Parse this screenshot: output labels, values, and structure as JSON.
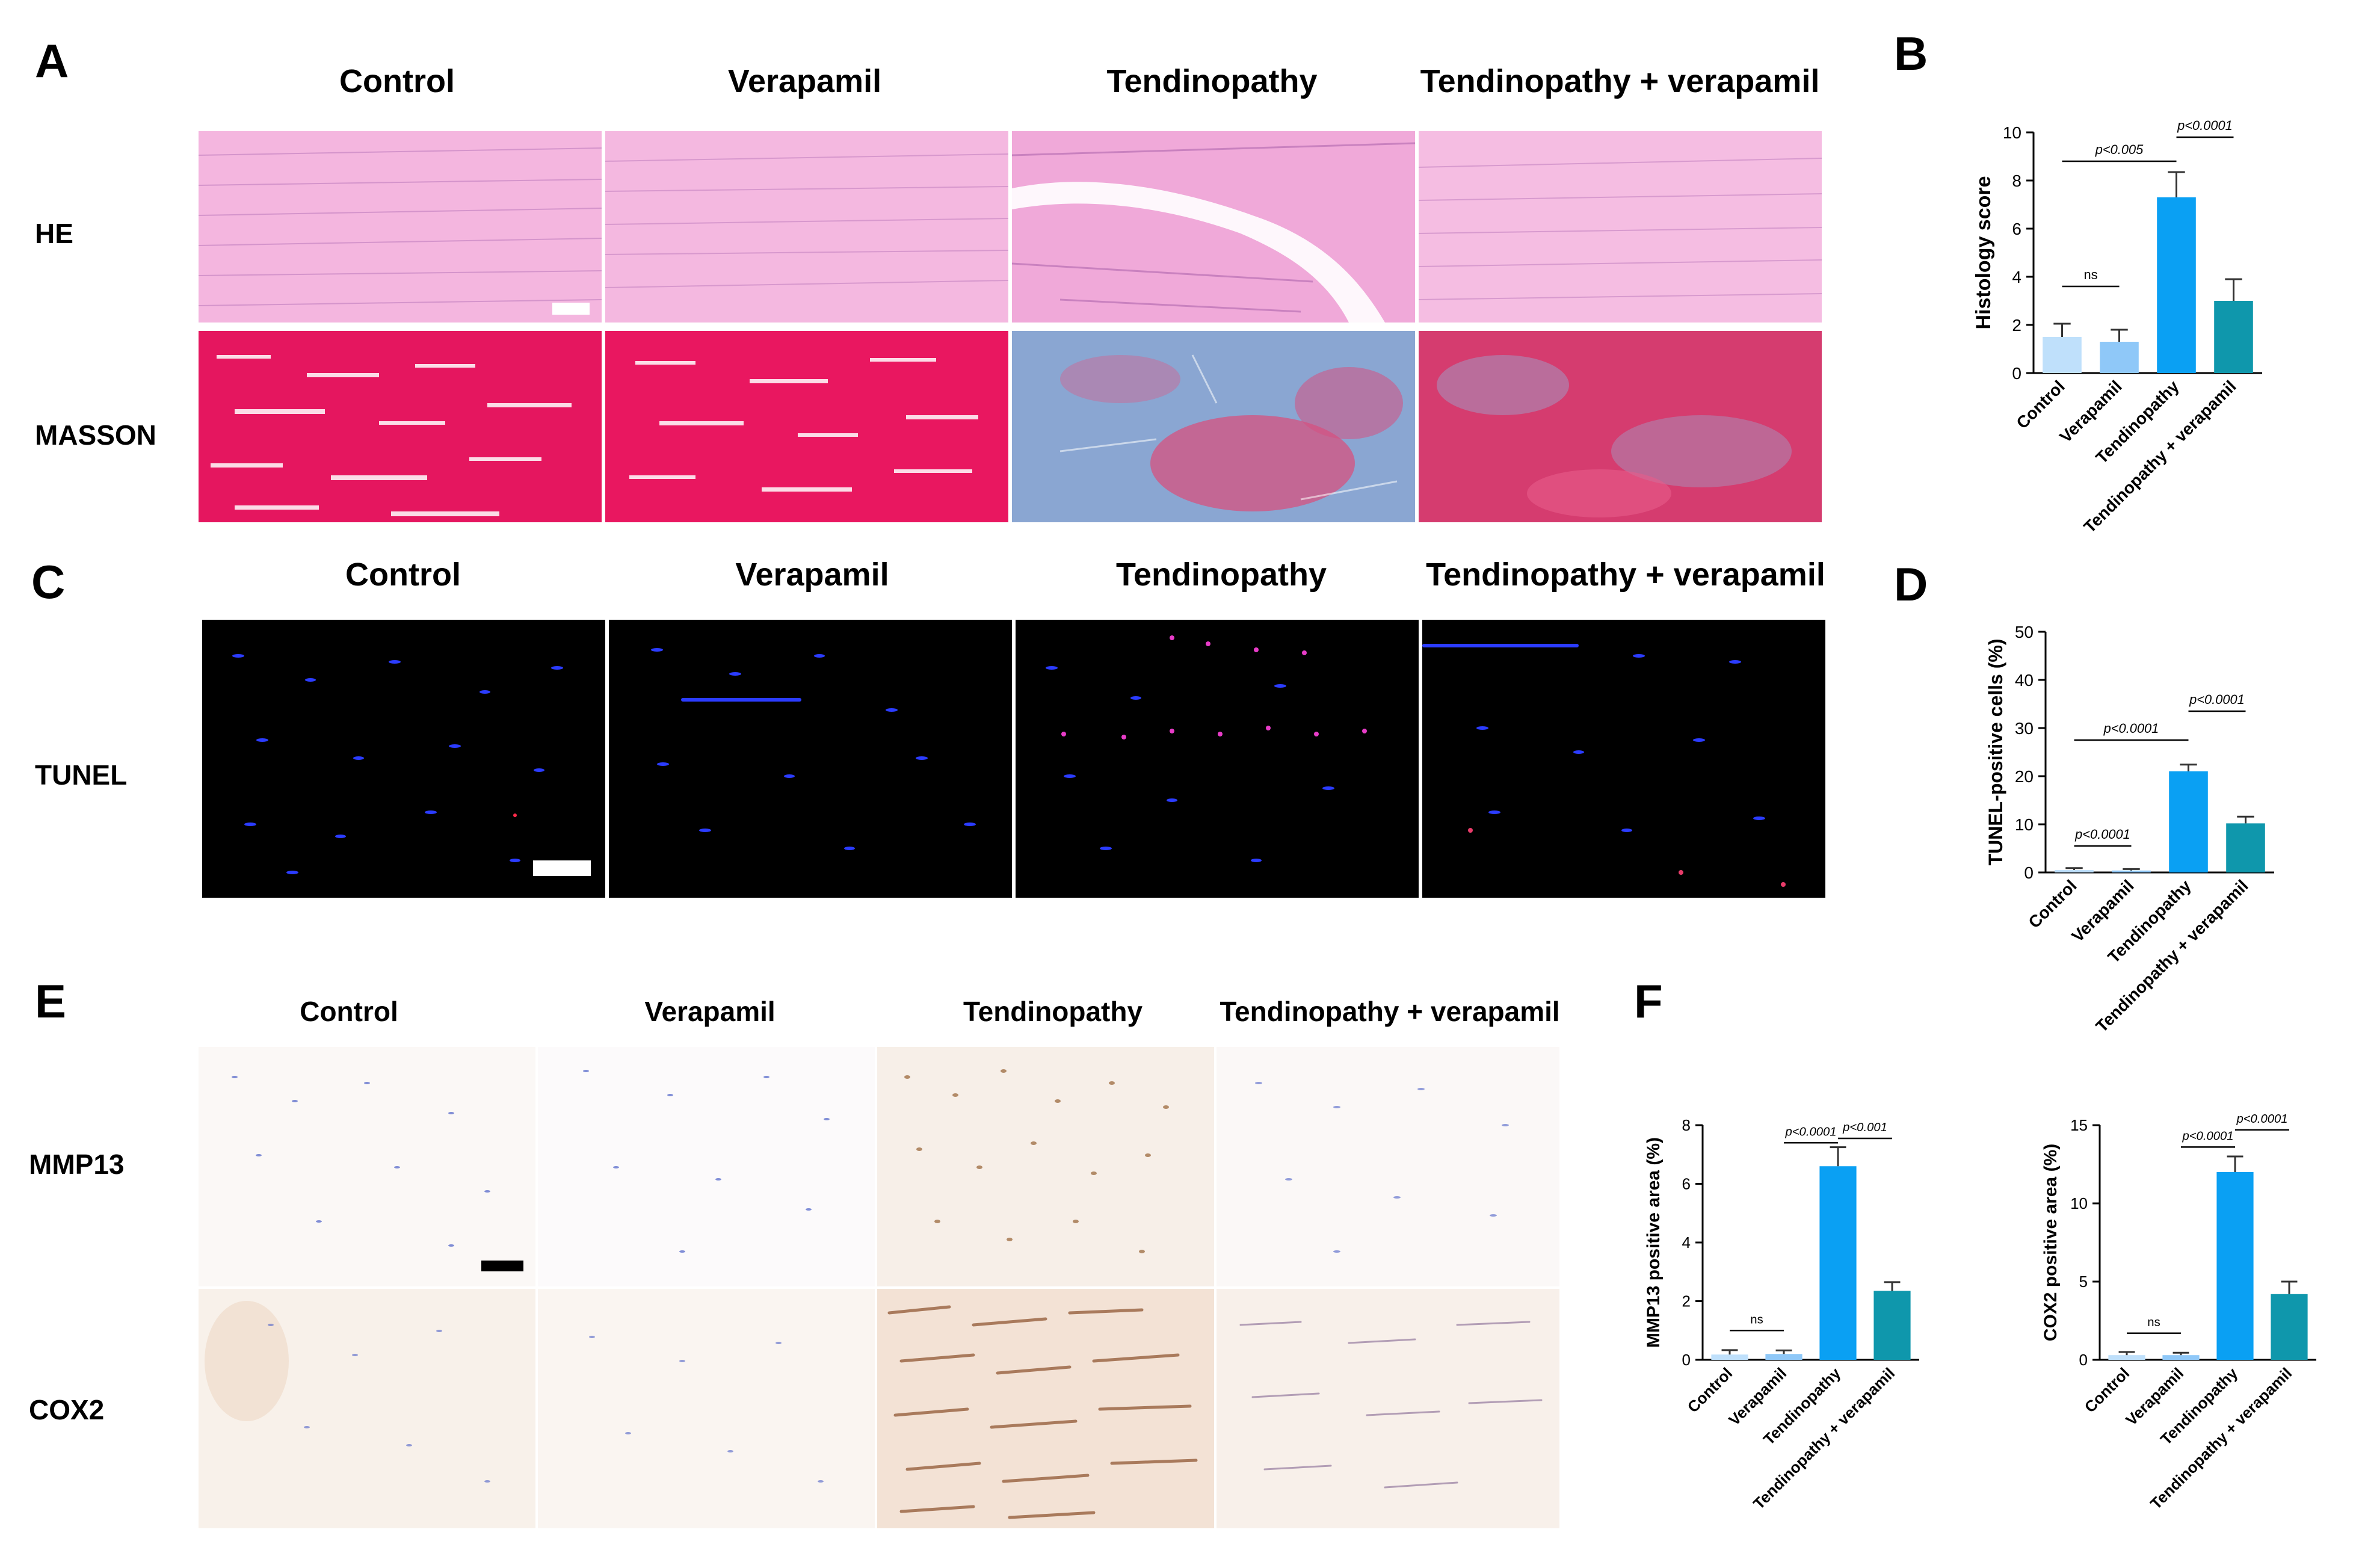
{
  "panels": {
    "A": "A",
    "B": "B",
    "C": "C",
    "D": "D",
    "E": "E",
    "F": "F"
  },
  "panel_a": {
    "columns": [
      "Control",
      "Verapamil",
      "Tendinopathy",
      "Tendinopathy + verapamil"
    ],
    "rows": [
      "HE",
      "MASSON"
    ]
  },
  "panel_c": {
    "columns": [
      "Control",
      "Verapamil",
      "Tendinopathy",
      "Tendinopathy + verapamil"
    ],
    "rows": [
      "TUNEL"
    ]
  },
  "panel_e": {
    "columns": [
      "Control",
      "Verapamil",
      "Tendinopathy",
      "Tendinopathy + verapamil"
    ],
    "rows": [
      "MMP13",
      "COX2"
    ]
  },
  "colors": {
    "control": "#bfe0fb",
    "verapamil": "#8fc8f8",
    "tendinopathy": "#0aa0f3",
    "tend_verapamil": "#0f97ac",
    "he_bg": "#f4b6df",
    "masson_red": "#e5165f",
    "masson_blue": "#8aa6d2",
    "tunel_bg": "#000000",
    "ihc_bg": "#fbf8f6"
  },
  "chart_data": [
    {
      "id": "B",
      "type": "bar",
      "categories": [
        "Control",
        "Verapamil",
        "Tendinopathy",
        "Tendinopathy + verapamil"
      ],
      "values": [
        1.5,
        1.3,
        7.3,
        3.0
      ],
      "errors": [
        0.55,
        0.5,
        1.05,
        0.9
      ],
      "xlabel": "",
      "ylabel": "Histology score",
      "ylim": [
        0,
        10
      ],
      "yticks": [
        0,
        2,
        4,
        6,
        8,
        10
      ],
      "annotations": [
        {
          "from": 0,
          "to": 1,
          "text": "ns",
          "level": 3.6
        },
        {
          "from": 0,
          "to": 2,
          "text": "p<0.005",
          "level": 8.8
        },
        {
          "from": 2,
          "to": 3,
          "text": "p<0.0001",
          "level": 9.8
        }
      ]
    },
    {
      "id": "D",
      "type": "bar",
      "categories": [
        "Control",
        "Verapamil",
        "Tendinopathy",
        "Tendinopathy + verapamil"
      ],
      "values": [
        0.5,
        0.4,
        21.0,
        10.2
      ],
      "errors": [
        0.4,
        0.3,
        1.4,
        1.4
      ],
      "xlabel": "",
      "ylabel": "TUNEL-positive cells (%)",
      "ylim": [
        0,
        50
      ],
      "yticks": [
        0,
        10,
        20,
        30,
        40,
        50
      ],
      "annotations": [
        {
          "from": 0,
          "to": 1,
          "text": "p<0.0001",
          "level": 5.5
        },
        {
          "from": 0,
          "to": 2,
          "text": "p<0.0001",
          "level": 27.5
        },
        {
          "from": 2,
          "to": 3,
          "text": "p<0.0001",
          "level": 33.5
        }
      ]
    },
    {
      "id": "F1",
      "type": "bar",
      "categories": [
        "Control",
        "Verapamil",
        "Tendinopathy",
        "Tendinopathy + verapamil"
      ],
      "values": [
        0.18,
        0.2,
        6.6,
        2.35
      ],
      "errors": [
        0.15,
        0.12,
        0.65,
        0.3
      ],
      "xlabel": "",
      "ylabel": "MMP13 positive area (%)",
      "ylim": [
        0,
        8
      ],
      "yticks": [
        0,
        2,
        4,
        6,
        8
      ],
      "annotations": [
        {
          "from": 0,
          "to": 1,
          "text": "ns",
          "level": 1.0
        },
        {
          "from": 1,
          "to": 2,
          "text": "p<0.0001",
          "level": 7.4
        },
        {
          "from": 2,
          "to": 3,
          "text": "p<0.001",
          "level": 7.55
        }
      ]
    },
    {
      "id": "F2",
      "type": "bar",
      "categories": [
        "Control",
        "Verapamil",
        "Tendinopathy",
        "Tendinopathy + verapamil"
      ],
      "values": [
        0.3,
        0.3,
        12.0,
        4.2
      ],
      "errors": [
        0.2,
        0.15,
        1.0,
        0.8
      ],
      "xlabel": "",
      "ylabel": "COX2 positive area (%)",
      "ylim": [
        0,
        15
      ],
      "yticks": [
        0,
        5,
        10,
        15
      ],
      "annotations": [
        {
          "from": 0,
          "to": 1,
          "text": "ns",
          "level": 1.7
        },
        {
          "from": 1,
          "to": 2,
          "text": "p<0.0001",
          "level": 13.6
        },
        {
          "from": 2,
          "to": 3,
          "text": "p<0.0001",
          "level": 14.7
        }
      ]
    }
  ]
}
